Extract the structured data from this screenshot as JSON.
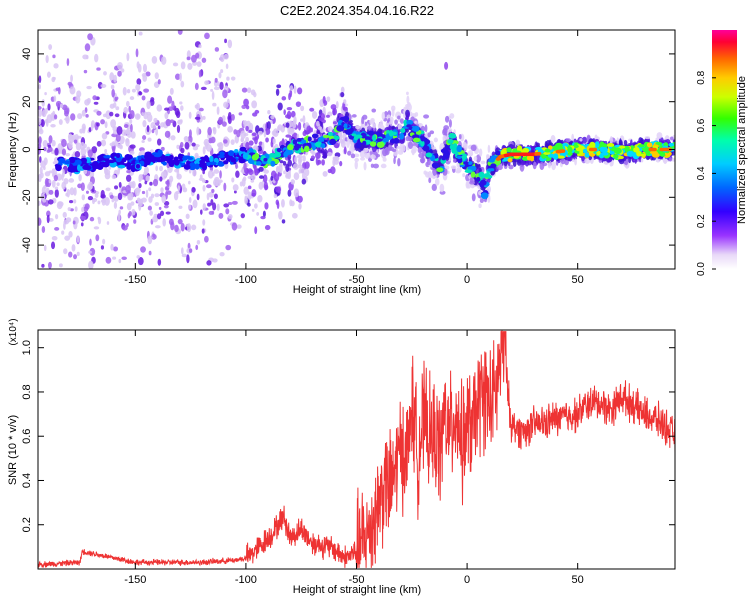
{
  "title": "C2E2.2024.354.04.16.R22",
  "colors": {
    "snr_line": "#ee3333",
    "axis": "#000000",
    "background": "#ffffff"
  },
  "chart_data": [
    {
      "type": "heatmap",
      "name": "spectrogram",
      "xlabel": "Height of straight line (km)",
      "ylabel": "Frequency (Hz)",
      "xlim": [
        -194,
        94
      ],
      "ylim": [
        -50,
        50
      ],
      "x_ticks": [
        "-150",
        "-100",
        "-50",
        "0",
        "50"
      ],
      "x_tick_values": [
        -150,
        -100,
        -50,
        0,
        50
      ],
      "y_ticks": [
        "40",
        "20",
        "0",
        "-20",
        "-40"
      ],
      "y_tick_values": [
        40,
        20,
        0,
        -20,
        -40
      ],
      "colorbar": {
        "label": "Normalized spectral amplitude",
        "range": [
          0,
          1
        ],
        "ticks": [
          "0.0",
          "0.2",
          "0.4",
          "0.6",
          "0.8"
        ],
        "tick_values": [
          0,
          0.2,
          0.4,
          0.6,
          0.8
        ],
        "colormap": "rainbow (white-violet-blue-cyan-green-yellow-orange-red-magenta)"
      },
      "ridge": {
        "x": [
          -190,
          -175,
          -160,
          -150,
          -140,
          -120,
          -100,
          -90,
          -80,
          -70,
          -60,
          -55,
          -50,
          -45,
          -40,
          -35,
          -30,
          -27,
          -25,
          -20,
          -15,
          -12,
          -10,
          -7,
          -5,
          -2,
          0,
          3,
          5,
          7,
          8,
          10,
          15,
          20,
          25,
          30,
          40,
          50,
          60,
          70,
          80,
          90,
          94
        ],
        "y": [
          -5,
          -7,
          -4,
          -6,
          -3,
          -6,
          -2,
          -5,
          1,
          3,
          5,
          12,
          4,
          5,
          4,
          6,
          5,
          12,
          8,
          4,
          -4,
          -8,
          -2,
          4,
          0,
          -4,
          -6,
          -9,
          -10,
          -14,
          -18,
          -8,
          -3,
          -2,
          -2,
          -2,
          -1,
          0,
          0,
          -1,
          0,
          0,
          0
        ]
      }
    },
    {
      "type": "line",
      "name": "snr",
      "xlabel": "Height of straight line (km)",
      "ylabel": "SNR (10 * v/v)",
      "y_multiplier": "(x10⁴)",
      "xlim": [
        -194,
        94
      ],
      "ylim": [
        0,
        1.08
      ],
      "x_ticks": [
        "-150",
        "-100",
        "-50",
        "0",
        "50"
      ],
      "x_tick_values": [
        -150,
        -100,
        -50,
        0,
        50
      ],
      "y_ticks": [
        "1.0",
        "0.8",
        "0.6",
        "0.4",
        "0.2"
      ],
      "y_tick_values": [
        1.0,
        0.8,
        0.6,
        0.4,
        0.2
      ],
      "series": [
        {
          "x": [
            -194,
            -175,
            -174,
            -150,
            -120,
            -105,
            -100,
            -95,
            -88,
            -83,
            -80,
            -75,
            -70,
            -60,
            -55,
            -50,
            -45,
            -40,
            -37,
            -35,
            -30,
            -27,
            -25,
            -22,
            -20,
            -17,
            -15,
            -12,
            -10,
            -8,
            -5,
            -2,
            0,
            3,
            5,
            8,
            10,
            13,
            15,
            17,
            18,
            20,
            25,
            30,
            35,
            40,
            50,
            55,
            60,
            65,
            70,
            80,
            88,
            94
          ],
          "y": [
            0.02,
            0.03,
            0.08,
            0.03,
            0.03,
            0.04,
            0.05,
            0.09,
            0.16,
            0.24,
            0.14,
            0.18,
            0.12,
            0.09,
            0.05,
            0.08,
            0.15,
            0.3,
            0.4,
            0.35,
            0.55,
            0.5,
            0.75,
            0.5,
            0.68,
            0.6,
            0.6,
            0.55,
            0.7,
            0.6,
            0.72,
            0.55,
            0.65,
            0.65,
            0.75,
            0.8,
            0.75,
            0.78,
            0.95,
            1.05,
            0.85,
            0.65,
            0.62,
            0.65,
            0.66,
            0.68,
            0.7,
            0.75,
            0.75,
            0.72,
            0.78,
            0.7,
            0.66,
            0.6
          ]
        }
      ]
    }
  ]
}
